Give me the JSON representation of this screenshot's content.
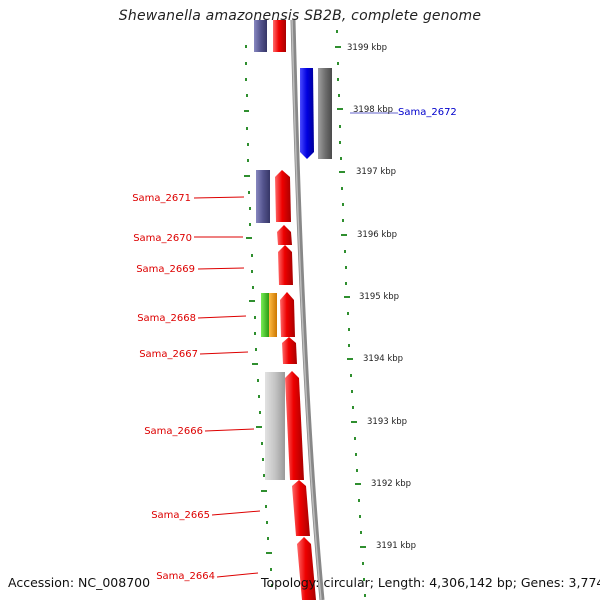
{
  "title": "Shewanella amazonensis SB2B, complete genome",
  "footer": {
    "accession": "Accession: NC_008700",
    "summary": "Topology: circular; Length: 4,306,142 bp; Genes: 3,774"
  },
  "colors": {
    "forward_gene": "#ee0000",
    "reverse_gene_purple": "#5a5a9a",
    "blue_gene": "#0000dd",
    "gray_gene": "#777777",
    "light_gray_gene": "#c8c8c8",
    "green_gene": "#44cc22",
    "orange_gene": "#ee9911",
    "tick_green": "#2f8f2f",
    "label_red": "#dd0000",
    "label_blue": "#0000cc",
    "backbone": "#888888"
  },
  "ruler": {
    "unit": "kbp",
    "ticks": [
      "3199 kbp",
      "3198 kbp",
      "3197 kbp",
      "3196 kbp",
      "3195 kbp",
      "3194 kbp",
      "3193 kbp",
      "3192 kbp",
      "3191 kbp"
    ]
  },
  "genes": [
    {
      "name": "Sama_2672",
      "label_color": "blue"
    },
    {
      "name": "Sama_2671",
      "label_color": "red"
    },
    {
      "name": "Sama_2670",
      "label_color": "red"
    },
    {
      "name": "Sama_2669",
      "label_color": "red"
    },
    {
      "name": "Sama_2668",
      "label_color": "red"
    },
    {
      "name": "Sama_2667",
      "label_color": "red"
    },
    {
      "name": "Sama_2666",
      "label_color": "red"
    },
    {
      "name": "Sama_2665",
      "label_color": "red"
    },
    {
      "name": "Sama_2664",
      "label_color": "red"
    }
  ]
}
